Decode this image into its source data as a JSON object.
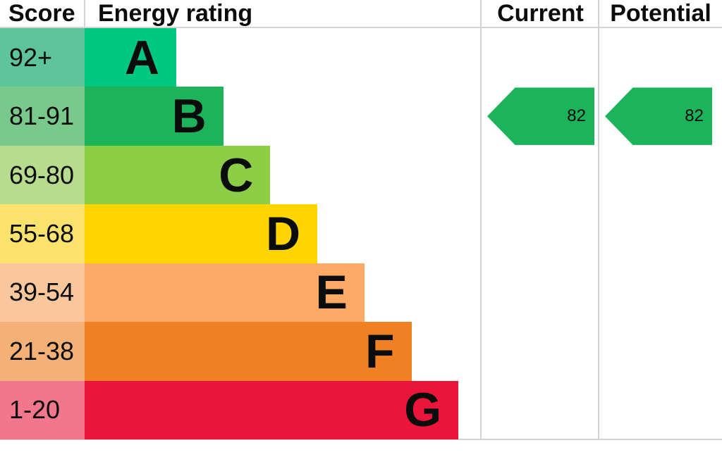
{
  "header": {
    "score": "Score",
    "rating": "Energy rating",
    "current": "Current",
    "potential": "Potential"
  },
  "bands": [
    {
      "letter": "A",
      "range": "92+",
      "min": 92,
      "max": 100,
      "bar_color": "#00c781",
      "score_color": "#5ec49a"
    },
    {
      "letter": "B",
      "range": "81-91",
      "min": 81,
      "max": 91,
      "bar_color": "#1cb35a",
      "score_color": "#79c98d"
    },
    {
      "letter": "C",
      "range": "69-80",
      "min": 69,
      "max": 80,
      "bar_color": "#8dce46",
      "score_color": "#b8dc8e"
    },
    {
      "letter": "D",
      "range": "55-68",
      "min": 55,
      "max": 68,
      "bar_color": "#ffd500",
      "score_color": "#fbe26d"
    },
    {
      "letter": "E",
      "range": "39-54",
      "min": 39,
      "max": 54,
      "bar_color": "#fcaa65",
      "score_color": "#fac79c"
    },
    {
      "letter": "F",
      "range": "21-38",
      "min": 21,
      "max": 38,
      "bar_color": "#ef8023",
      "score_color": "#f3b077"
    },
    {
      "letter": "G",
      "range": "1-20",
      "min": 1,
      "max": 20,
      "bar_color": "#e9153b",
      "score_color": "#f2778c"
    }
  ],
  "ratings": {
    "current": {
      "value": 82,
      "band": "B",
      "arrow_color": "#1cb35a"
    },
    "potential": {
      "value": 82,
      "band": "B",
      "arrow_color": "#1cb35a"
    }
  },
  "colors": {
    "grid_line": "#d1d3d4",
    "text": "#0b0c0c"
  },
  "chart_data": {
    "type": "bar",
    "title": "Energy rating",
    "columns": [
      "Score",
      "Energy rating",
      "Current",
      "Potential"
    ],
    "categories": [
      "A",
      "B",
      "C",
      "D",
      "E",
      "F",
      "G"
    ],
    "score_ranges": [
      "92+",
      "81-91",
      "69-80",
      "55-68",
      "39-54",
      "21-38",
      "1-20"
    ],
    "band_colors": [
      "#00c781",
      "#1cb35a",
      "#8dce46",
      "#ffd500",
      "#fcaa65",
      "#ef8023",
      "#e9153b"
    ],
    "bar_lengths_relative": [
      1,
      1.51,
      2.03,
      2.54,
      3.05,
      3.56,
      4.08
    ],
    "legend_position": "none",
    "grid": false,
    "markers": [
      {
        "name": "Current",
        "value": 82,
        "band": "B"
      },
      {
        "name": "Potential",
        "value": 82,
        "band": "B"
      }
    ]
  }
}
